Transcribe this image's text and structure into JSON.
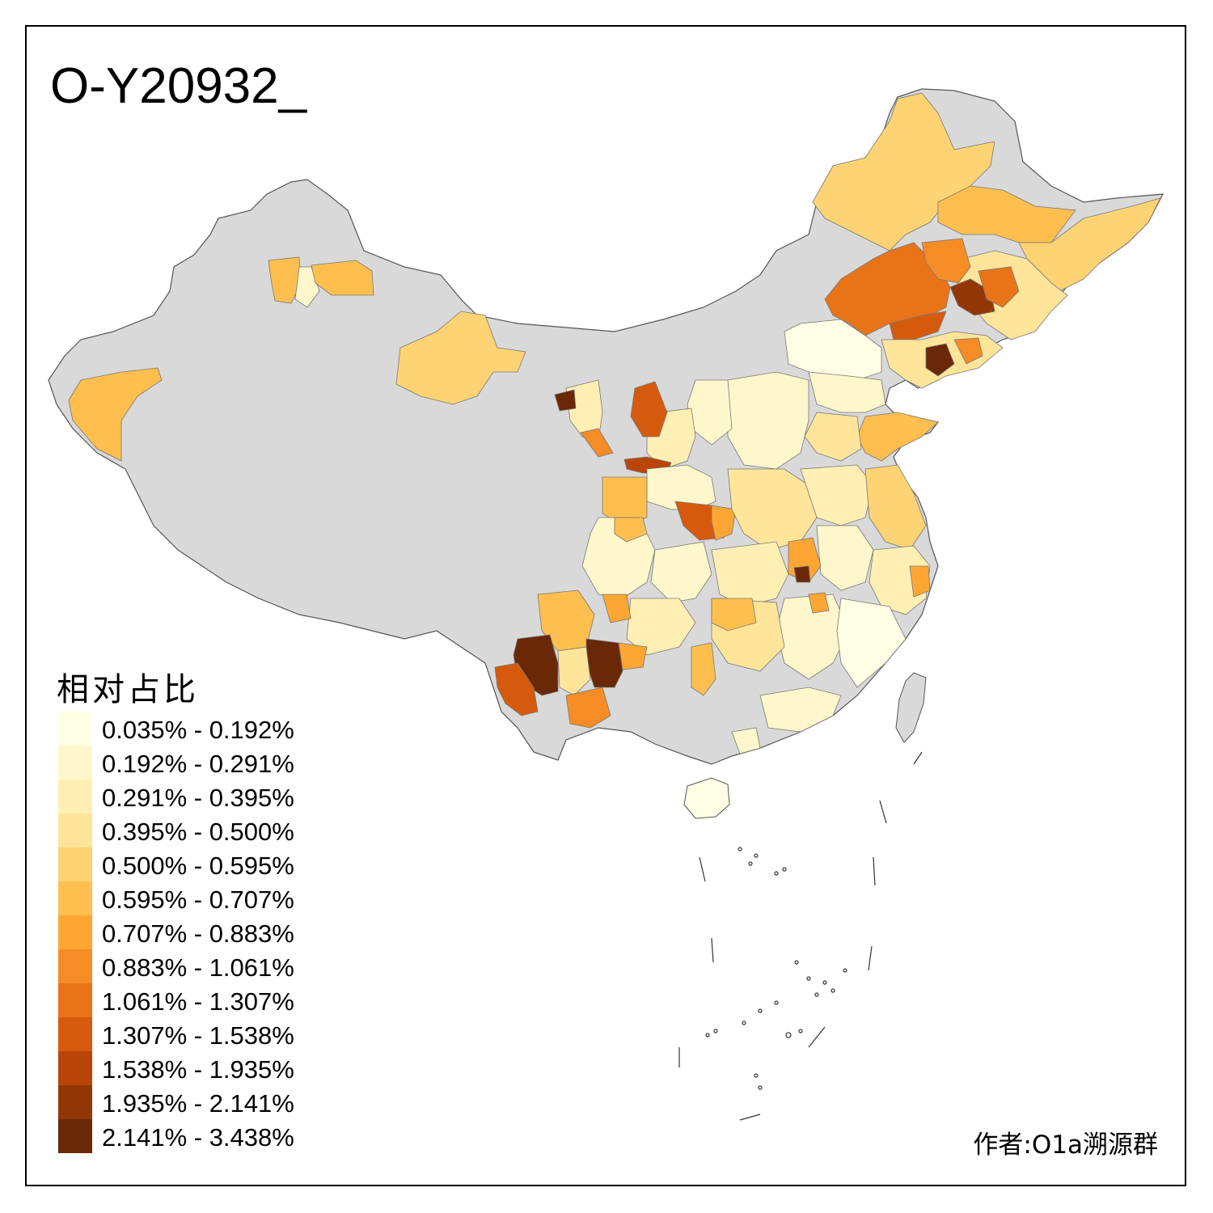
{
  "title": "O-Y20932_",
  "legend": {
    "title": "相对占比",
    "items": [
      {
        "label": "0.035% - 0.192%",
        "color": "#ffffe5"
      },
      {
        "label": "0.192% - 0.291%",
        "color": "#fff7cc"
      },
      {
        "label": "0.291% - 0.395%",
        "color": "#ffefb3"
      },
      {
        "label": "0.395% - 0.500%",
        "color": "#fee59a"
      },
      {
        "label": "0.500% - 0.595%",
        "color": "#fed373"
      },
      {
        "label": "0.595% - 0.707%",
        "color": "#febf4f"
      },
      {
        "label": "0.707% - 0.883%",
        "color": "#fea634"
      },
      {
        "label": "0.883% - 1.061%",
        "color": "#f58c25"
      },
      {
        "label": "1.061% - 1.307%",
        "color": "#e97418"
      },
      {
        "label": "1.307% - 1.538%",
        "color": "#d65a0d"
      },
      {
        "label": "1.538% - 1.935%",
        "color": "#ba4508"
      },
      {
        "label": "1.935% - 2.141%",
        "color": "#933606"
      },
      {
        "label": "2.141% - 3.438%",
        "color": "#6b2806"
      }
    ]
  },
  "author": "作者:O1a溯源群",
  "colors": {
    "no_data": "#d9d9d9",
    "border": "#555555",
    "frame": "#000000",
    "background": "#ffffff"
  }
}
